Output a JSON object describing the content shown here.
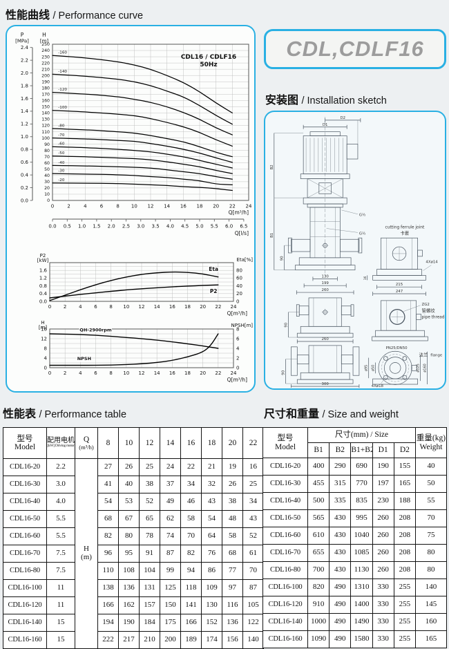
{
  "colors": {
    "accent": "#29b0e3",
    "badge_gray": "#9c9c9c",
    "page_bg": "#edf0f2"
  },
  "badge": "CDL,CDLF16",
  "headings": {
    "performance_curve": {
      "zh": "性能曲线",
      "en": "/ Performance curve"
    },
    "installation": {
      "zh": "安装图",
      "en": "/ Installation sketch"
    },
    "performance_table": {
      "zh": "性能表",
      "en": "/ Performance table"
    },
    "size_weight": {
      "zh": "尺寸和重量",
      "en": "/  Size and weight"
    }
  },
  "chart_data": [
    {
      "name": "head_curves",
      "type": "line",
      "title": "CDL16 / CDLF16",
      "subtitle": "50Hz",
      "left_axis": {
        "label": "P",
        "unit": "[MPa]",
        "min": 0,
        "max": 2.4,
        "step": 0.2
      },
      "right_axis": {
        "label": "H",
        "unit": "[m]",
        "min": 0,
        "max": 250,
        "step": 10
      },
      "xlabel": "Q[m³/h]",
      "x2label": "Q[l/s]",
      "xlim": [
        0,
        24
      ],
      "xstep": 2,
      "x2lim": [
        0,
        6.5
      ],
      "x2step": 0.5,
      "grid": true,
      "legend_position": "inline",
      "x": [
        0,
        4,
        8,
        10,
        12,
        14,
        16,
        18,
        20,
        22
      ],
      "series": [
        {
          "name": "-160",
          "values": [
            232,
            228.5,
            222,
            217,
            210,
            200,
            189,
            174,
            156,
            140
          ]
        },
        {
          "name": "-140",
          "values": [
            202,
            199.2,
            194,
            190,
            184,
            175,
            166,
            152,
            136,
            122
          ]
        },
        {
          "name": "-120",
          "values": [
            173,
            170.5,
            166,
            162,
            157,
            150,
            141,
            130,
            116,
            105
          ]
        },
        {
          "name": "-100",
          "values": [
            144,
            141.9,
            138,
            136,
            131,
            125,
            118,
            109,
            97,
            87
          ]
        },
        {
          "name": "-80",
          "values": [
            115,
            113.2,
            110,
            108,
            104,
            99,
            94,
            86,
            77,
            70
          ]
        },
        {
          "name": "-70",
          "values": [
            100,
            98.6,
            96,
            95,
            91,
            87,
            82,
            76,
            68,
            61
          ]
        },
        {
          "name": "-60",
          "values": [
            86,
            84.6,
            82,
            80,
            78,
            74,
            70,
            64,
            58,
            52
          ]
        },
        {
          "name": "-50",
          "values": [
            71,
            70,
            68,
            67,
            65,
            62,
            58,
            54,
            48,
            43
          ]
        },
        {
          "name": "-40",
          "values": [
            56,
            55.3,
            54,
            53,
            52,
            49,
            46,
            43,
            38,
            34
          ]
        },
        {
          "name": "-30",
          "values": [
            43,
            42.3,
            41,
            40,
            38,
            37,
            34,
            32,
            26,
            25
          ]
        },
        {
          "name": "-20",
          "values": [
            28,
            27.6,
            27,
            26,
            25,
            24,
            22,
            21,
            19,
            16
          ]
        }
      ]
    },
    {
      "name": "power_efficiency",
      "type": "line",
      "left_axis": {
        "label": "P2",
        "unit": "[kW]",
        "ticks": [
          0.0,
          0.4,
          0.8,
          1.2,
          1.6
        ]
      },
      "right_axis": {
        "label": "Eta[%]",
        "ticks": [
          0,
          20,
          40,
          60,
          80
        ]
      },
      "xlabel": "Q[m³/h]",
      "xlim": [
        0,
        24
      ],
      "xstep": 2,
      "grid": true,
      "x": [
        0,
        2,
        4,
        6,
        8,
        10,
        12,
        14,
        16,
        18,
        20,
        22
      ],
      "series": [
        {
          "name": "Eta",
          "axis": "right",
          "values": [
            2,
            16,
            30,
            43,
            54,
            63,
            70,
            74,
            76,
            75,
            71,
            63
          ]
        },
        {
          "name": "P2",
          "axis": "left",
          "values": [
            0.18,
            0.27,
            0.36,
            0.44,
            0.52,
            0.59,
            0.65,
            0.7,
            0.75,
            0.79,
            0.82,
            0.85
          ]
        }
      ]
    },
    {
      "name": "npsh",
      "type": "line",
      "left_axis": {
        "label": "H",
        "unit": "[m]",
        "ticks": [
          0,
          4,
          8,
          12,
          16
        ]
      },
      "right_axis": {
        "label": "NPSH[m]",
        "ticks": [
          0,
          2,
          4,
          6,
          8
        ]
      },
      "xlabel": "Q[m³/h]",
      "xlim": [
        0,
        24
      ],
      "xstep": 2,
      "grid": true,
      "x": [
        0,
        2,
        4,
        6,
        8,
        10,
        12,
        14,
        16,
        18,
        20,
        21,
        22
      ],
      "series": [
        {
          "name": "QH-2900rpm",
          "axis": "left",
          "values": [
            14,
            13.9,
            13.7,
            13.4,
            13,
            12.5,
            12,
            11.4,
            10.7,
            9.9,
            9,
            8.5,
            8
          ]
        },
        {
          "name": "NPSH",
          "axis": "right",
          "values": [
            0.5,
            0.5,
            0.5,
            0.5,
            0.55,
            0.65,
            0.8,
            1.05,
            1.5,
            2.2,
            3.2,
            4.5,
            7
          ]
        }
      ]
    }
  ],
  "performance_table": {
    "header": {
      "model_zh": "型号",
      "model_en": "Model",
      "motor_zh": "配用电机",
      "motor_en": "[kW] Driving motor",
      "q_label": "Q",
      "q_unit": "(m³/h)"
    },
    "flow_columns": [
      "8",
      "10",
      "12",
      "14",
      "16",
      "18",
      "20",
      "22"
    ],
    "h_label": "H",
    "h_unit": "(m)",
    "rows": [
      {
        "model": "CDL16-20",
        "motor": "2.2",
        "values": [
          27,
          26,
          25,
          24,
          22,
          21,
          19,
          16
        ]
      },
      {
        "model": "CDL16-30",
        "motor": "3.0",
        "values": [
          41,
          40,
          38,
          37,
          34,
          32,
          26,
          25
        ]
      },
      {
        "model": "CDL16-40",
        "motor": "4.0",
        "values": [
          54,
          53,
          52,
          49,
          46,
          43,
          38,
          34
        ]
      },
      {
        "model": "CDL16-50",
        "motor": "5.5",
        "values": [
          68,
          67,
          65,
          62,
          58,
          54,
          48,
          43
        ]
      },
      {
        "model": "CDL16-60",
        "motor": "5.5",
        "values": [
          82,
          80,
          78,
          74,
          70,
          64,
          58,
          52
        ]
      },
      {
        "model": "CDL16-70",
        "motor": "7.5",
        "values": [
          96,
          95,
          91,
          87,
          82,
          76,
          68,
          61
        ]
      },
      {
        "model": "CDL16-80",
        "motor": "7.5",
        "values": [
          110,
          108,
          104,
          99,
          94,
          86,
          77,
          70
        ]
      },
      {
        "model": "CDL16-100",
        "motor": "11",
        "values": [
          138,
          136,
          131,
          125,
          118,
          109,
          97,
          87
        ]
      },
      {
        "model": "CDL16-120",
        "motor": "11",
        "values": [
          166,
          162,
          157,
          150,
          141,
          130,
          116,
          105
        ]
      },
      {
        "model": "CDL16-140",
        "motor": "15",
        "values": [
          194,
          190,
          184,
          175,
          166,
          152,
          136,
          122
        ]
      },
      {
        "model": "CDL16-160",
        "motor": "15",
        "values": [
          222,
          217,
          210,
          200,
          189,
          174,
          156,
          140
        ]
      }
    ]
  },
  "size_table": {
    "header": {
      "model_zh": "型号",
      "model_en": "Model",
      "size_group": "尺寸(mm)  /  Size",
      "cols": [
        "B1",
        "B2",
        "B1+B2",
        "D1",
        "D2"
      ],
      "weight_zh": "重量(kg)",
      "weight_en": "Weight"
    },
    "rows": [
      {
        "model": "CDL16-20",
        "values": [
          400,
          290,
          690,
          190,
          155,
          40
        ]
      },
      {
        "model": "CDL16-30",
        "values": [
          455,
          315,
          770,
          197,
          165,
          50
        ]
      },
      {
        "model": "CDL16-40",
        "values": [
          500,
          335,
          835,
          230,
          188,
          55
        ]
      },
      {
        "model": "CDL16-50",
        "values": [
          565,
          430,
          995,
          260,
          208,
          70
        ]
      },
      {
        "model": "CDL16-60",
        "values": [
          610,
          430,
          1040,
          260,
          208,
          75
        ]
      },
      {
        "model": "CDL16-70",
        "values": [
          655,
          430,
          1085,
          260,
          208,
          80
        ]
      },
      {
        "model": "CDL16-80",
        "values": [
          700,
          430,
          1130,
          260,
          208,
          80
        ]
      },
      {
        "model": "CDL16-100",
        "values": [
          820,
          490,
          1310,
          330,
          255,
          140
        ]
      },
      {
        "model": "CDL16-120",
        "values": [
          910,
          490,
          1400,
          330,
          255,
          145
        ]
      },
      {
        "model": "CDL16-140",
        "values": [
          1000,
          490,
          1490,
          330,
          255,
          160
        ]
      },
      {
        "model": "CDL16-160",
        "values": [
          1090,
          490,
          1580,
          330,
          255,
          165
        ]
      }
    ]
  },
  "sketch": {
    "d1": "D1",
    "d2": "D2",
    "b1": "B1",
    "b2": "B2",
    "g_top": "G½",
    "g_bottom": "G½",
    "ferrule_en": "cutting ferrule joint",
    "ferrule_zh": "卡套",
    "bolt_ferrule": "4Xø14",
    "dim_16": "16",
    "dim_130": "130",
    "dim_199": "199",
    "dim_260_base": "260",
    "dim_215": "215",
    "dim_247": "247",
    "dim_90_a": "90",
    "dim_90_b": "90",
    "dim_90_c": "90",
    "dim_260": "260",
    "dim_300": "300",
    "thread_code": "ZG2",
    "thread_zh": "管螺纹",
    "thread_en": "pipe thread",
    "flange_std": "PN25/DN50",
    "flange_zh": "法兰",
    "flange_en": "flange",
    "bolt_flange": "4Xø18",
    "dia_95": "ø95",
    "dia_50": "ø50",
    "dia_125": "ø125",
    "dia_160": "ø160"
  }
}
